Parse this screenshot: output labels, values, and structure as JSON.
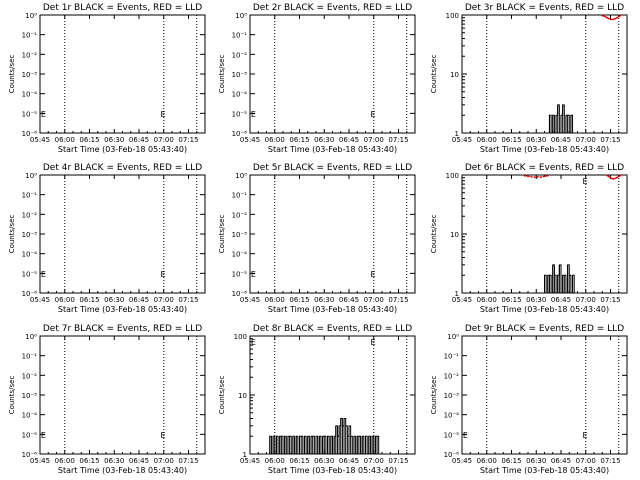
{
  "figure": {
    "panels": [
      {
        "title": "Det 1r BLACK = Events, RED = LLD",
        "scale": "low",
        "annotations": [
          "E",
          "E"
        ]
      },
      {
        "title": "Det 2r BLACK = Events, RED = LLD",
        "scale": "low",
        "annotations": [
          "E",
          "E"
        ]
      },
      {
        "title": "Det 3r BLACK = Events, RED = LLD",
        "scale": "high",
        "annotations": [],
        "events": true,
        "lld": true
      },
      {
        "title": "Det 4r BLACK = Events, RED = LLD",
        "scale": "low",
        "annotations": [
          "E",
          "E"
        ]
      },
      {
        "title": "Det 5r BLACK = Events, RED = LLD",
        "scale": "low",
        "annotations": [
          "E",
          "E"
        ]
      },
      {
        "title": "Det 6r BLACK = Events, RED = LLD",
        "scale": "high",
        "annotations": [
          "E"
        ],
        "events": true,
        "lld": true
      },
      {
        "title": "Det 7r BLACK = Events, RED = LLD",
        "scale": "low",
        "annotations": [
          "E",
          "E"
        ]
      },
      {
        "title": "Det 8r BLACK = Events, RED = LLD",
        "scale": "high",
        "annotations": [
          "E",
          "E"
        ],
        "events": true
      },
      {
        "title": "Det 9r BLACK = Events, RED = LLD",
        "scale": "low",
        "annotations": [
          "E",
          "E"
        ]
      }
    ]
  },
  "chart_data": {
    "type": "line",
    "layout": "3x3 grid",
    "xlabel": "Start Time (03-Feb-18 05:43:40)",
    "ylabel": "Counts/sec",
    "x_ticks": [
      "05:45",
      "06:00",
      "06:15",
      "06:30",
      "06:45",
      "07:00",
      "07:15"
    ],
    "x_tick_minutes": [
      0,
      15,
      30,
      45,
      60,
      75,
      90
    ],
    "x_range_minutes": [
      0,
      100
    ],
    "x_unit": "minutes after 05:45",
    "vlines_minutes": [
      15,
      75,
      95
    ],
    "y_scale": "log",
    "y_ticks_low": [
      "10⁰",
      "10⁻¹",
      "10⁻²",
      "10⁻³",
      "10⁻⁴",
      "10⁻⁵",
      "10⁻⁶"
    ],
    "y_range_low": [
      1e-06,
      1
    ],
    "y_ticks_high": [
      "1",
      "10",
      "100"
    ],
    "y_range_high": [
      1,
      100
    ],
    "series": [
      {
        "name": "BLACK = Events",
        "color": "#000000"
      },
      {
        "name": "RED = LLD",
        "color": "#dd0000"
      }
    ],
    "events_det3r": {
      "x": [
        52,
        53,
        54,
        55,
        56,
        57,
        58,
        59,
        60,
        61,
        62,
        63,
        64,
        65,
        66,
        67
      ],
      "y": [
        1,
        2,
        1,
        2,
        1,
        2,
        3,
        1,
        2,
        3,
        1,
        2,
        2,
        1,
        2,
        1
      ]
    },
    "events_det6r": {
      "x": [
        49,
        50,
        51,
        52,
        53,
        54,
        55,
        56,
        57,
        58,
        59,
        60,
        61,
        62,
        63,
        64,
        65,
        66,
        67,
        68,
        69
      ],
      "y": [
        1,
        2,
        1,
        2,
        2,
        1,
        3,
        2,
        1,
        2,
        3,
        1,
        2,
        2,
        1,
        3,
        2,
        1,
        2,
        1,
        1
      ]
    },
    "events_det8r": {
      "x": [
        11,
        12,
        13,
        14,
        15,
        16,
        17,
        18,
        19,
        20,
        21,
        22,
        23,
        24,
        25,
        26,
        27,
        28,
        29,
        30,
        31,
        32,
        33,
        34,
        35,
        36,
        37,
        38,
        39,
        40,
        41,
        42,
        43,
        44,
        45,
        46,
        47,
        48,
        49,
        50,
        51,
        52,
        53,
        54,
        55,
        56,
        57,
        58,
        59,
        60,
        61,
        62,
        63,
        64,
        65,
        66,
        67,
        68,
        69,
        70,
        71,
        72,
        73,
        74,
        75,
        76,
        77,
        78,
        79
      ],
      "y": [
        1,
        2,
        1,
        2,
        1,
        2,
        1,
        2,
        2,
        1,
        2,
        1,
        2,
        2,
        1,
        2,
        1,
        2,
        1,
        2,
        2,
        1,
        2,
        1,
        2,
        1,
        2,
        2,
        1,
        2,
        1,
        2,
        1,
        2,
        2,
        1,
        2,
        1,
        2,
        1,
        2,
        3,
        2,
        3,
        4,
        3,
        4,
        3,
        2,
        3,
        2,
        1,
        2,
        1,
        2,
        2,
        1,
        2,
        1,
        2,
        1,
        2,
        1,
        2,
        1,
        2,
        2,
        1,
        1
      ]
    },
    "lld_det3r": {
      "x": [
        85,
        86,
        87,
        88,
        89,
        90,
        91,
        92,
        93,
        94,
        95,
        96
      ],
      "y": [
        98,
        96,
        93,
        90,
        87,
        85,
        84,
        85,
        87,
        90,
        94,
        98
      ]
    },
    "lld_det6r": {
      "x": [
        38,
        40,
        42,
        44,
        46,
        48,
        50,
        52,
        88,
        89,
        90,
        91,
        92,
        93,
        94,
        95,
        96
      ],
      "y": [
        97,
        95,
        93,
        92,
        93,
        92,
        95,
        97,
        98,
        94,
        90,
        87,
        86,
        88,
        91,
        95,
        98
      ]
    }
  }
}
